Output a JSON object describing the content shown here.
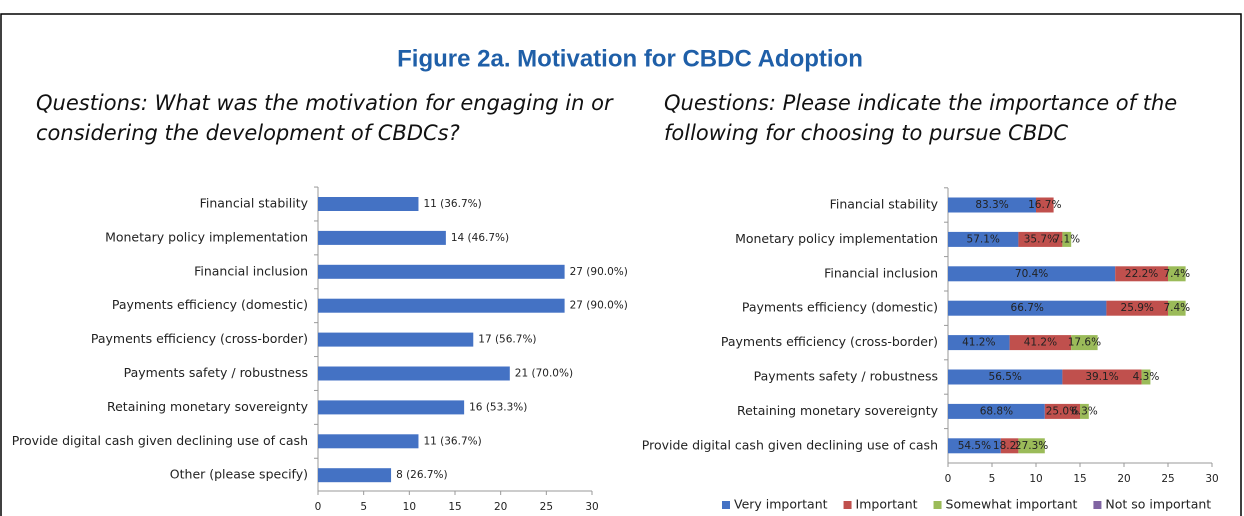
{
  "title": "Figure 2a. Motivation for CBDC Adoption",
  "chart_data": [
    {
      "type": "bar",
      "orientation": "horizontal",
      "title": "Questions: What was the motivation for engaging in or considering the development of CBDCs?",
      "categories": [
        "Financial stability",
        "Monetary policy implementation",
        "Financial inclusion",
        "Payments efficiency (domestic)",
        "Payments efficiency (cross-border)",
        "Payments safety / robustness",
        "Retaining monetary sovereignty",
        "Provide digital cash given declining use of cash",
        "Other (please specify)"
      ],
      "values": [
        11,
        14,
        27,
        27,
        17,
        21,
        16,
        11,
        8
      ],
      "value_labels": [
        "11 (36.7%)",
        "14 (46.7%)",
        "27 (90.0%)",
        "27 (90.0%)",
        "17 (56.7%)",
        "21 (70.0%)",
        "16 (53.3%)",
        "11 (36.7%)",
        "8 (26.7%)"
      ],
      "color": "#4472c4",
      "xlim": [
        0,
        30
      ],
      "xticks": [
        0,
        5,
        10,
        15,
        20,
        25,
        30
      ]
    },
    {
      "type": "stacked_bar",
      "orientation": "horizontal",
      "title": "Questions: Please indicate the importance of the following for choosing to pursue CBDC",
      "categories": [
        "Financial stability",
        "Monetary policy implementation",
        "Financial inclusion",
        "Payments efficiency (domestic)",
        "Payments efficiency (cross-border)",
        "Payments safety / robustness",
        "Retaining monetary sovereignty",
        "Provide digital cash given declining use of cash"
      ],
      "series": [
        {
          "name": "Very important",
          "color": "#4472c4",
          "values": [
            10,
            8,
            19,
            18,
            7,
            13,
            11,
            6
          ],
          "value_labels": [
            "83.3%",
            "57.1%",
            "70.4%",
            "66.7%",
            "41.2%",
            "56.5%",
            "68.8%",
            "54.5%"
          ]
        },
        {
          "name": "Important",
          "color": "#c0504d",
          "values": [
            2,
            5,
            6,
            7,
            7,
            9,
            4,
            2
          ],
          "value_labels": [
            "16.7%",
            "35.7%",
            "22.2%",
            "25.9%",
            "41.2%",
            "39.1%",
            "25.0%",
            "18.2%"
          ]
        },
        {
          "name": "Somewhat important",
          "color": "#9bbb59",
          "values": [
            0,
            1,
            2,
            2,
            3,
            1,
            1,
            3
          ],
          "value_labels": [
            null,
            "7.1%",
            "7.4%",
            "7.4%",
            "17.6%",
            "4.3%",
            "6.3%",
            "27.3%"
          ]
        },
        {
          "name": "Not so important",
          "color": "#8064a2",
          "values": [
            0,
            0,
            0,
            0,
            0,
            0,
            0,
            0
          ]
        }
      ],
      "xlim": [
        0,
        30
      ],
      "xticks": [
        0,
        5,
        10,
        15,
        20,
        25,
        30
      ],
      "legend": "bottom"
    }
  ]
}
